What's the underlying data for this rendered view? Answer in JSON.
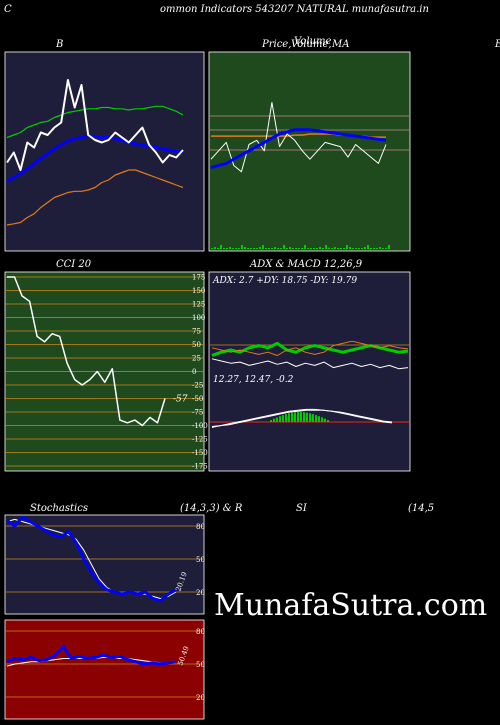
{
  "header": {
    "left_letter": "C",
    "title": "ommon  Indicators 543207 NATURAL  munafasutra.in"
  },
  "watermark": "MunafaSutra.com",
  "panels": {
    "bollinger": {
      "title": "B"
    },
    "price_ma": {
      "title_a": "Price,",
      "title_b": "Volume,",
      "title_c": "MA",
      "title_d": "Volume",
      "edge_letter": "E"
    },
    "cci": {
      "title": "CCI 20"
    },
    "adx_macd": {
      "title": "ADX  & MACD 12,26,9",
      "adx_readout": "ADX: 2.7 +DY: 18.75 -DY: 19.79",
      "macd_readout": "12.27,   12.47,  -0.2"
    },
    "stochastics": {
      "title_a": "Stochastics",
      "title_b": "(14,3,3) & R",
      "title_c": "SI",
      "title_d": "(14,5"
    }
  },
  "colors": {
    "navy_bg": "#1e1e3a",
    "green_bg": "#1e4a1e",
    "red_bg": "#8b0000",
    "blue": "#0000ff",
    "white": "#ffffff",
    "orange": "#e07a1a",
    "green_line": "#00cc00"
  },
  "chart_data": [
    {
      "type": "line",
      "panel": "bollinger",
      "series": [
        {
          "role": "upper",
          "color": "#00cc00",
          "values": [
            108,
            110,
            112,
            116,
            118,
            120,
            121,
            124,
            126,
            128,
            129,
            130,
            131,
            131,
            132,
            132,
            131,
            131,
            130,
            131,
            131,
            132,
            133,
            133,
            131,
            129,
            126
          ]
        },
        {
          "role": "middle",
          "color": "#0000ff",
          "values": [
            73,
            76,
            79,
            83,
            87,
            91,
            95,
            99,
            102,
            105,
            107,
            108,
            109,
            109,
            108,
            108,
            107,
            106,
            104,
            103,
            102,
            101,
            100,
            99,
            98,
            97,
            96
          ]
        },
        {
          "role": "lower",
          "color": "#e07a1a",
          "values": [
            38,
            39,
            40,
            44,
            47,
            52,
            56,
            60,
            62,
            64,
            65,
            65,
            66,
            68,
            72,
            74,
            78,
            80,
            82,
            82,
            80,
            78,
            76,
            74,
            72,
            70,
            68
          ]
        },
        {
          "role": "price",
          "color": "#ffffff",
          "values": [
            88,
            96,
            82,
            104,
            100,
            112,
            110,
            116,
            120,
            154,
            132,
            150,
            110,
            106,
            104,
            106,
            112,
            108,
            104,
            110,
            116,
            102,
            96,
            88,
            94,
            92,
            98
          ]
        }
      ]
    },
    {
      "type": "line",
      "panel": "price_ma",
      "series": [
        {
          "role": "price",
          "color": "#ffffff",
          "values": [
            96,
            104,
            112,
            90,
            84,
            110,
            114,
            104,
            150,
            108,
            120,
            114,
            104,
            96,
            104,
            112,
            110,
            108,
            98,
            110,
            104,
            98,
            92,
            110
          ]
        },
        {
          "role": "ma_fast",
          "color": "#0000ff",
          "values": [
            88,
            90,
            92,
            96,
            100,
            104,
            108,
            112,
            116,
            120,
            122,
            124,
            124,
            124,
            123,
            122,
            121,
            120,
            119,
            118,
            117,
            116,
            115,
            114
          ]
        },
        {
          "role": "ma_slow",
          "color": "#e07a1a",
          "values": [
            118,
            118,
            118,
            118,
            118,
            118,
            118,
            118,
            118,
            118,
            118,
            119,
            119,
            120,
            120,
            120,
            120,
            119,
            119,
            118,
            118,
            117,
            117,
            117
          ]
        }
      ]
    },
    {
      "type": "line",
      "panel": "cci",
      "y_ticks": [
        175,
        150,
        125,
        100,
        75,
        50,
        25,
        0,
        -25,
        -50,
        -75,
        -100,
        -125,
        -150,
        -175
      ],
      "ylim": [
        -175,
        175
      ],
      "last_label": "-57",
      "values": [
        175,
        175,
        140,
        130,
        65,
        55,
        70,
        65,
        15,
        -15,
        -25,
        -15,
        0,
        -20,
        5,
        -90,
        -95,
        -90,
        -100,
        -85,
        -95,
        -50
      ]
    },
    {
      "type": "line",
      "panel": "adx",
      "series": [
        {
          "role": "plus_di",
          "color": "#00cc00",
          "values": [
            15,
            18,
            20,
            18,
            22,
            24,
            22,
            26,
            20,
            18,
            22,
            24,
            22,
            20,
            18,
            20,
            22,
            24,
            22,
            20,
            18,
            19
          ]
        },
        {
          "role": "minus_di",
          "color": "#e07a1a",
          "values": [
            22,
            20,
            18,
            20,
            18,
            16,
            18,
            15,
            20,
            22,
            18,
            16,
            18,
            24,
            26,
            28,
            26,
            24,
            22,
            24,
            22,
            21
          ]
        },
        {
          "role": "adx",
          "color": "#ffffff",
          "values": [
            12,
            10,
            8,
            9,
            6,
            8,
            10,
            7,
            9,
            5,
            8,
            6,
            9,
            4,
            6,
            8,
            5,
            7,
            4,
            6,
            3,
            4
          ]
        }
      ]
    },
    {
      "type": "line",
      "panel": "macd",
      "series": [
        {
          "role": "macd",
          "color": "#ffffff",
          "values": [
            -6,
            -4,
            -2,
            0,
            2,
            4,
            6,
            8,
            10,
            12,
            13,
            14,
            14,
            13,
            12,
            10,
            8,
            6,
            4,
            2,
            0,
            -1
          ]
        },
        {
          "role": "signal",
          "color": "#ffffff",
          "values": [
            -5,
            -4,
            -3,
            -1,
            1,
            3,
            5,
            7,
            9,
            11,
            12,
            13,
            13,
            13,
            12,
            11,
            9,
            7,
            5,
            3,
            1,
            0
          ]
        }
      ]
    },
    {
      "type": "line",
      "panel": "stochastics",
      "y_ticks": [
        80,
        50,
        20
      ],
      "last_label": "20.19",
      "series": [
        {
          "role": "k",
          "color": "#0000ff",
          "values": [
            85,
            80,
            88,
            84,
            80,
            76,
            72,
            70,
            75,
            65,
            50,
            38,
            28,
            22,
            20,
            18,
            20,
            18,
            20,
            14,
            12,
            18,
            22
          ]
        },
        {
          "role": "d",
          "color": "#ffffff",
          "values": [
            84,
            86,
            84,
            82,
            80,
            78,
            76,
            74,
            72,
            68,
            58,
            45,
            32,
            24,
            20,
            19,
            19,
            19,
            18,
            16,
            14,
            16,
            20
          ]
        }
      ]
    },
    {
      "type": "line",
      "panel": "rsi",
      "y_ticks": [
        80,
        50,
        20
      ],
      "last_label": "50.49",
      "series": [
        {
          "role": "rsi",
          "color": "#0000ff",
          "values": [
            52,
            55,
            54,
            56,
            53,
            54,
            58,
            66,
            55,
            57,
            55,
            56,
            58,
            56,
            57,
            54,
            52,
            50,
            51,
            50,
            51,
            52
          ]
        },
        {
          "role": "rsi_ma",
          "color": "#ffffff",
          "values": [
            48,
            50,
            51,
            52,
            52,
            53,
            54,
            55,
            55,
            55,
            55,
            55,
            56,
            56,
            55,
            55,
            54,
            53,
            52,
            51,
            51,
            51
          ]
        }
      ]
    }
  ]
}
